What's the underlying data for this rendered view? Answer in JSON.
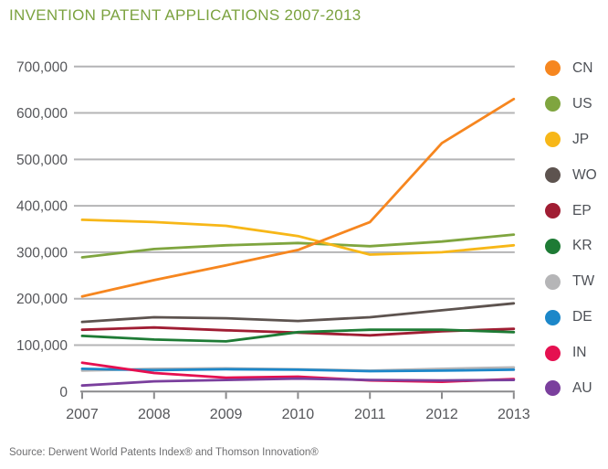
{
  "chart_data": {
    "type": "line",
    "title": "INVENTION PATENT APPLICATIONS 2007-2013",
    "source": "Source: Derwent World Patents Index® and Thomson Innovation®",
    "categories": [
      "2007",
      "2008",
      "2009",
      "2010",
      "2011",
      "2012",
      "2013"
    ],
    "y_ticks": [
      "0",
      "100,000",
      "200,000",
      "300,000",
      "400,000",
      "500,000",
      "600,000",
      "700,000"
    ],
    "ylim": [
      0,
      700000
    ],
    "grid": "horizontal",
    "legend_position": "right",
    "series": [
      {
        "name": "CN",
        "color": "#F6861F",
        "values": [
          205000,
          240000,
          272000,
          305000,
          365000,
          535000,
          630000
        ]
      },
      {
        "name": "US",
        "color": "#7FA53F",
        "values": [
          289000,
          307000,
          315000,
          320000,
          313000,
          323000,
          338000
        ]
      },
      {
        "name": "JP",
        "color": "#F7B718",
        "values": [
          370000,
          365000,
          357000,
          335000,
          295000,
          300000,
          315000
        ]
      },
      {
        "name": "WO",
        "color": "#5D534F",
        "values": [
          150000,
          160000,
          158000,
          152000,
          160000,
          175000,
          190000
        ]
      },
      {
        "name": "EP",
        "color": "#A01D33",
        "values": [
          133000,
          138000,
          132000,
          127000,
          121000,
          130000,
          135000
        ]
      },
      {
        "name": "KR",
        "color": "#1E7B35",
        "values": [
          120000,
          112000,
          108000,
          128000,
          133000,
          133000,
          128000
        ]
      },
      {
        "name": "TW",
        "color": "#B5B5B7",
        "values": [
          45000,
          49000,
          50000,
          48000,
          45000,
          49000,
          52000
        ]
      },
      {
        "name": "DE",
        "color": "#1C87C9",
        "values": [
          49000,
          46000,
          48000,
          47000,
          44000,
          45000,
          47000
        ]
      },
      {
        "name": "IN",
        "color": "#E51050",
        "values": [
          62000,
          40000,
          30000,
          32000,
          24000,
          21000,
          27000
        ]
      },
      {
        "name": "AU",
        "color": "#7A3F9D",
        "values": [
          13000,
          22000,
          25000,
          28000,
          25000,
          24000,
          25000
        ]
      }
    ],
    "colors": {
      "title_text": "#7BA23F",
      "axis_text": "#55565A",
      "gridline": "#B4B4B6",
      "axis_line": "#8A8A8C",
      "legend_text": "#4D5056",
      "source_text": "#6E6E70"
    }
  }
}
